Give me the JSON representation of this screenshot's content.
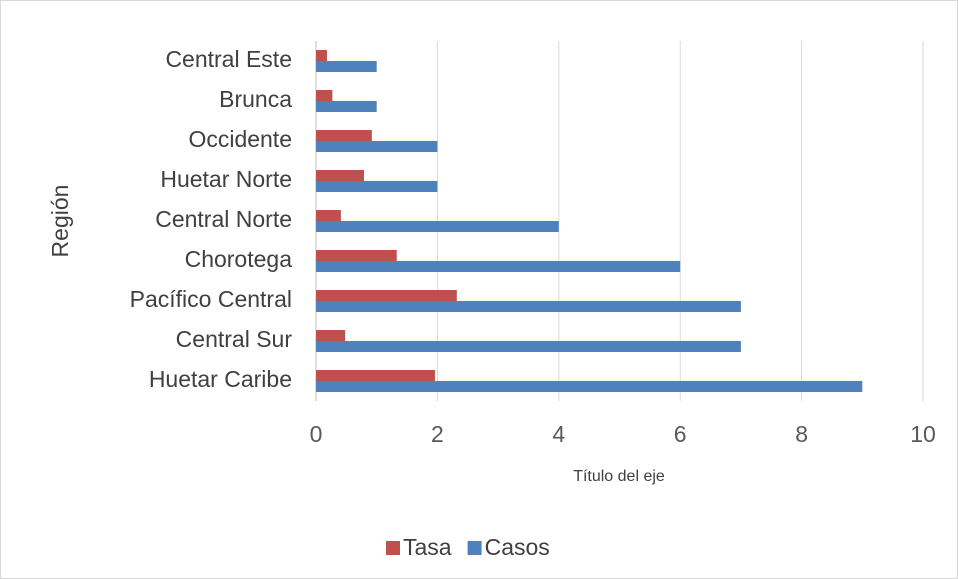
{
  "chart_data": {
    "type": "bar",
    "orientation": "horizontal",
    "x_axis_label": "Título del eje",
    "y_axis_label": "Región",
    "categories": [
      "Central Este",
      "Brunca",
      "Occidente",
      "Huetar Norte",
      "Central Norte",
      "Chorotega",
      "Pacífico Central",
      "Central Sur",
      "Huetar Caribe"
    ],
    "series": [
      {
        "name": "Tasa",
        "color": "#c0504d",
        "values": [
          0.18,
          0.27,
          0.92,
          0.79,
          0.41,
          1.33,
          2.32,
          0.48,
          1.96
        ]
      },
      {
        "name": "Casos",
        "color": "#4f81bd",
        "values": [
          1,
          1,
          2,
          2,
          4,
          6,
          7,
          7,
          9
        ]
      }
    ],
    "xlim": [
      0,
      10
    ],
    "xticks": [
      0,
      2,
      4,
      6,
      8,
      10
    ],
    "grid": true,
    "legend": "bottom"
  }
}
